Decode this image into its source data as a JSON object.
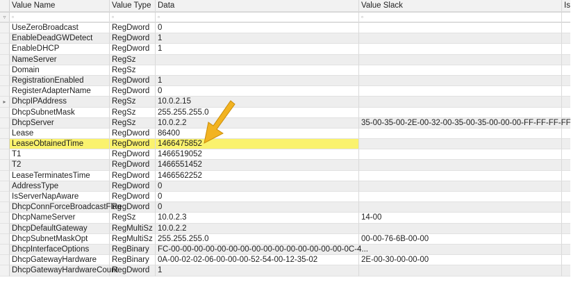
{
  "columns": {
    "indicator": "",
    "value_name": "Value Name",
    "value_type": "Value Type",
    "data": "Data",
    "value_slack": "Value Slack",
    "is_partial": "Is"
  },
  "filter_icon": "filter-row-icon",
  "filter_glyph": "▿",
  "filter_cell_glyph": "▫",
  "current_row_glyph": "▸",
  "highlight_color": "#faf26e",
  "arrow_color": "#f2b321",
  "rows": [
    {
      "name": "UseZeroBroadcast",
      "type": "RegDword",
      "data": "0",
      "slack": ""
    },
    {
      "name": "EnableDeadGWDetect",
      "type": "RegDword",
      "data": "1",
      "slack": ""
    },
    {
      "name": "EnableDHCP",
      "type": "RegDword",
      "data": "1",
      "slack": ""
    },
    {
      "name": "NameServer",
      "type": "RegSz",
      "data": "",
      "slack": ""
    },
    {
      "name": "Domain",
      "type": "RegSz",
      "data": "",
      "slack": ""
    },
    {
      "name": "RegistrationEnabled",
      "type": "RegDword",
      "data": "1",
      "slack": ""
    },
    {
      "name": "RegisterAdapterName",
      "type": "RegDword",
      "data": "0",
      "slack": ""
    },
    {
      "name": "DhcpIPAddress",
      "type": "RegSz",
      "data": "10.0.2.15",
      "slack": ""
    },
    {
      "name": "DhcpSubnetMask",
      "type": "RegSz",
      "data": "255.255.255.0",
      "slack": ""
    },
    {
      "name": "DhcpServer",
      "type": "RegSz",
      "data": "10.0.2.2",
      "slack": "35-00-35-00-2E-00-32-00-35-00-35-00-00-00-FF-FF-FF-FF"
    },
    {
      "name": "Lease",
      "type": "RegDword",
      "data": "86400",
      "slack": ""
    },
    {
      "name": "LeaseObtainedTime",
      "type": "RegDword",
      "data": "1466475852",
      "slack": ""
    },
    {
      "name": "T1",
      "type": "RegDword",
      "data": "1466519052",
      "slack": ""
    },
    {
      "name": "T2",
      "type": "RegDword",
      "data": "1466551452",
      "slack": ""
    },
    {
      "name": "LeaseTerminatesTime",
      "type": "RegDword",
      "data": "1466562252",
      "slack": ""
    },
    {
      "name": "AddressType",
      "type": "RegDword",
      "data": "0",
      "slack": ""
    },
    {
      "name": "IsServerNapAware",
      "type": "RegDword",
      "data": "0",
      "slack": ""
    },
    {
      "name": "DhcpConnForceBroadcastFlag",
      "type": "RegDword",
      "data": "0",
      "slack": ""
    },
    {
      "name": "DhcpNameServer",
      "type": "RegSz",
      "data": "10.0.2.3",
      "slack": "14-00"
    },
    {
      "name": "DhcpDefaultGateway",
      "type": "RegMultiSz",
      "data": "10.0.2.2",
      "slack": ""
    },
    {
      "name": "DhcpSubnetMaskOpt",
      "type": "RegMultiSz",
      "data": "255.255.255.0",
      "slack": "00-00-76-6B-00-00"
    },
    {
      "name": "DhcpInterfaceOptions",
      "type": "RegBinary",
      "data": "FC-00-00-00-00-00-00-00-00-00-00-00-00-00-00-00-0C-4...",
      "slack": ""
    },
    {
      "name": "DhcpGatewayHardware",
      "type": "RegBinary",
      "data": "0A-00-02-02-06-00-00-00-52-54-00-12-35-02",
      "slack": "2E-00-30-00-00-00"
    },
    {
      "name": "DhcpGatewayHardwareCount",
      "type": "RegDword",
      "data": "1",
      "slack": ""
    }
  ]
}
